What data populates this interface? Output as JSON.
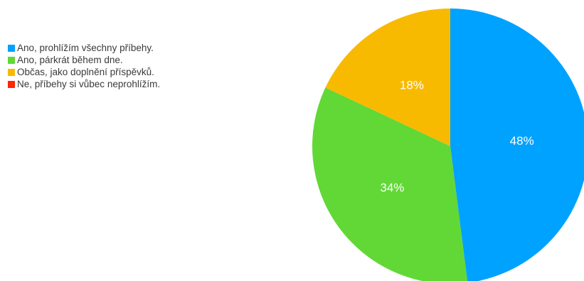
{
  "chart_data": {
    "type": "pie",
    "title": "",
    "legend_position": "left",
    "slices": [
      {
        "label": "Ano, prohlížím všechny příbehy.",
        "value": 48,
        "display": "48%",
        "color": "#00a2ff"
      },
      {
        "label": "Ano, párkrát během dne.",
        "value": 34,
        "display": "34%",
        "color": "#61d836"
      },
      {
        "label": "Občas, jako doplnění příspěvků.",
        "value": 18,
        "display": "18%",
        "color": "#f8ba00"
      },
      {
        "label": "Ne, příbehy si vůbec neprohlížím.",
        "value": 0,
        "display": "",
        "color": "#ff2600"
      }
    ]
  }
}
